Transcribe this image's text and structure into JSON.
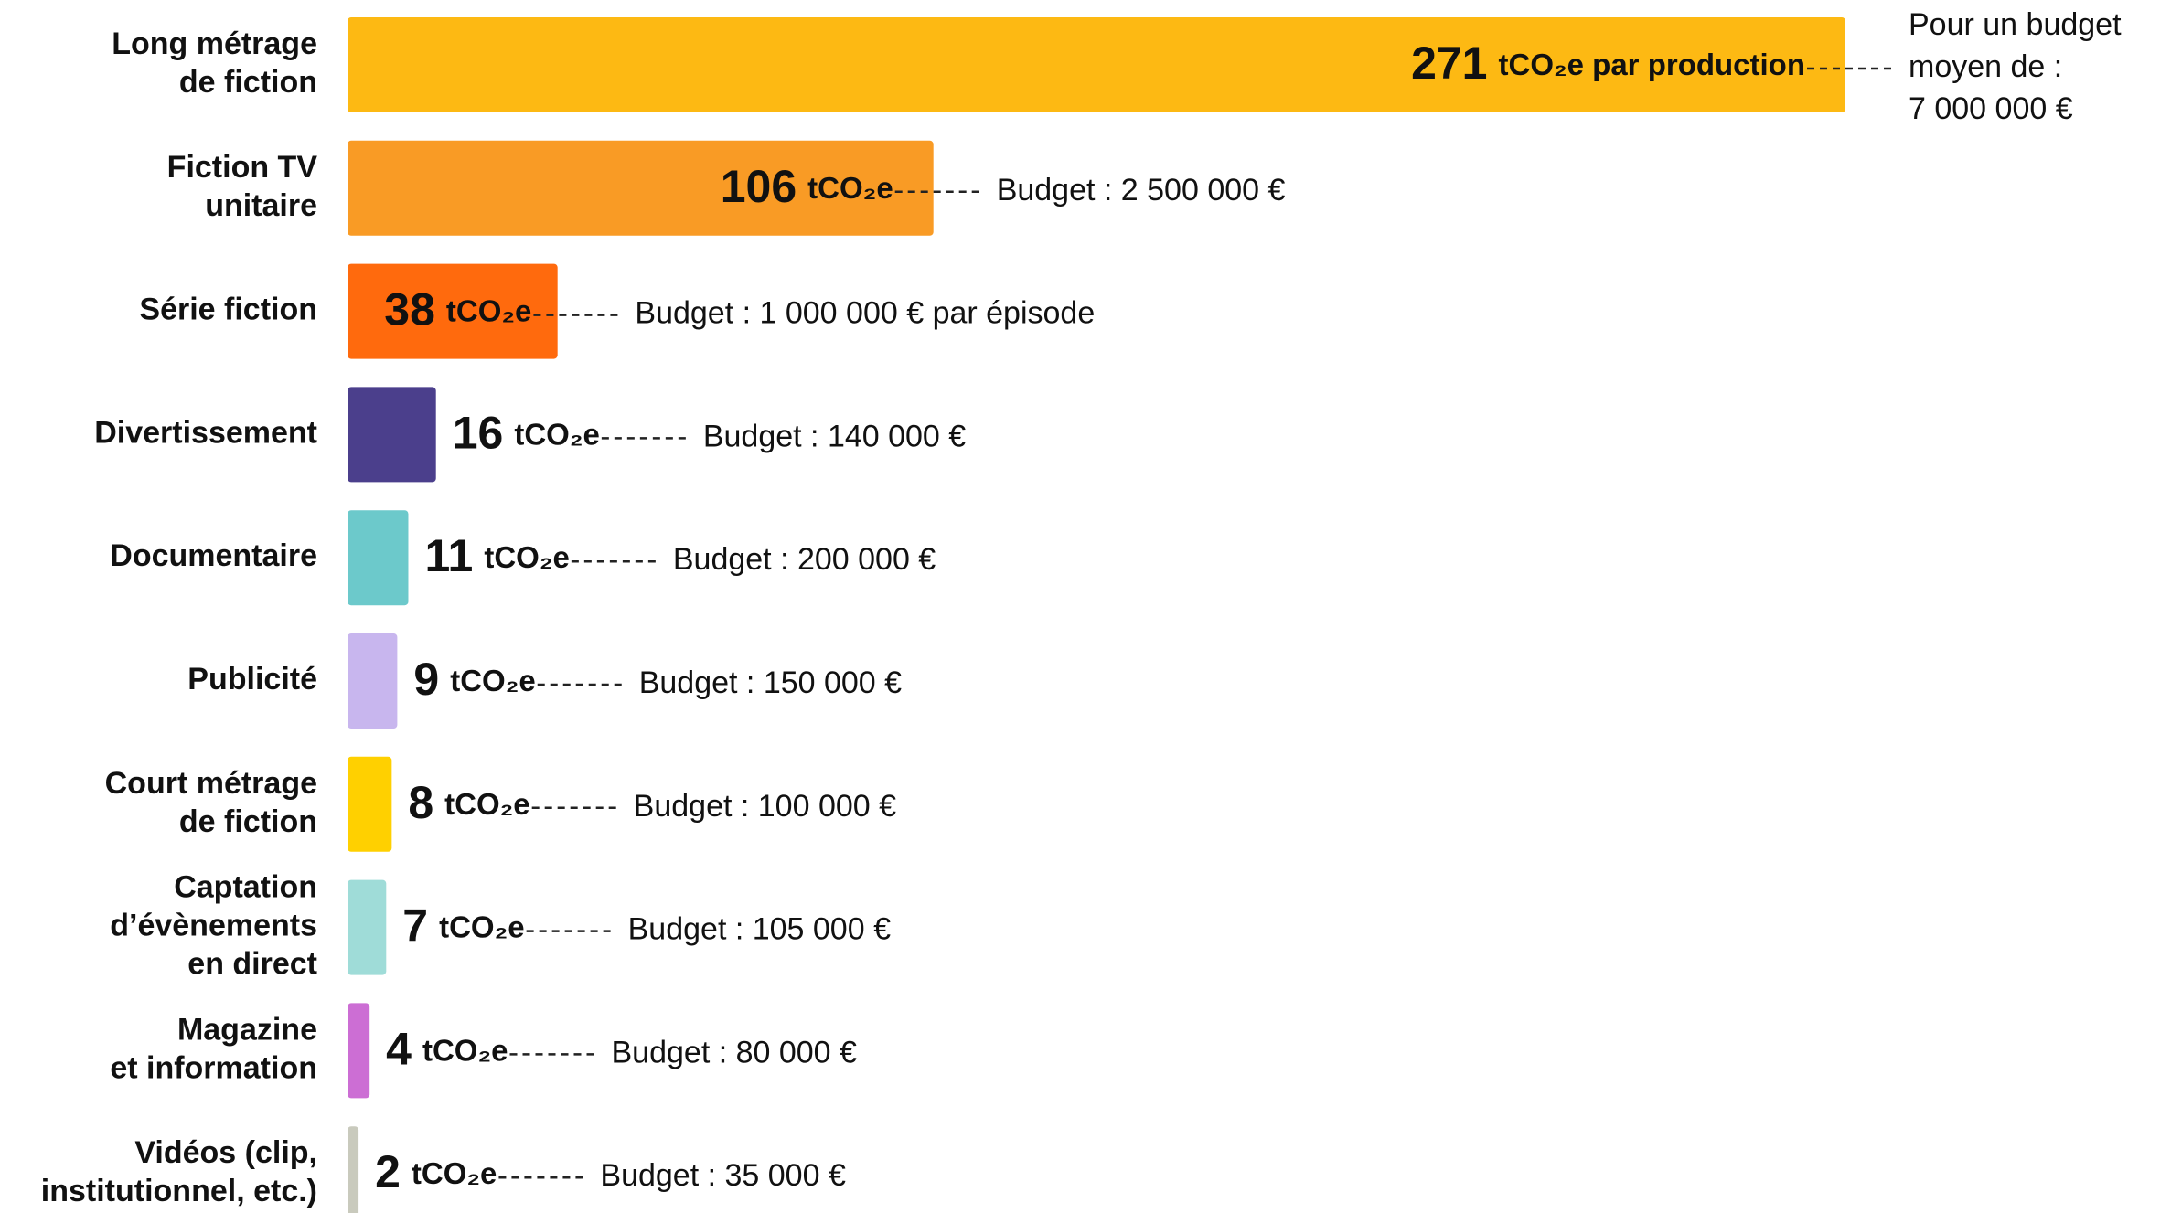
{
  "chart_data": {
    "type": "bar",
    "orientation": "horizontal",
    "categories": [
      [
        "Long métrage",
        "de fiction"
      ],
      [
        "Fiction TV",
        "unitaire"
      ],
      [
        "Série fiction"
      ],
      [
        "Divertissement"
      ],
      [
        "Documentaire"
      ],
      [
        "Publicité"
      ],
      [
        "Court métrage",
        "de fiction"
      ],
      [
        "Captation",
        "d’évènements",
        "en direct"
      ],
      [
        "Magazine",
        "et information"
      ],
      [
        "Vidéos (clip,",
        "institutionnel, etc.)"
      ]
    ],
    "values": [
      271,
      106,
      38,
      16,
      11,
      9,
      8,
      7,
      4,
      2
    ],
    "units": [
      "tCO₂e par production",
      "tCO₂e",
      "tCO₂e",
      "tCO₂e",
      "tCO₂e",
      "tCO₂e",
      "tCO₂e",
      "tCO₂e",
      "tCO₂e",
      "tCO₂e"
    ],
    "colors": [
      "#fdb913",
      "#f99b25",
      "#ff6a0d",
      "#4b3f8c",
      "#6cc9cb",
      "#c8b6ee",
      "#ffd000",
      "#9fdcd8",
      "#cc6ed4",
      "#c9cabd"
    ],
    "annotations": [
      [
        "Pour un budget",
        "moyen de :",
        "7 000 000 €"
      ],
      [
        "Budget : 2 500 000 €"
      ],
      [
        "Budget : 1 000 000 € par épisode"
      ],
      [
        "Budget : 140 000 €"
      ],
      [
        "Budget : 200 000 €"
      ],
      [
        "Budget : 150 000 €"
      ],
      [
        "Budget : 100 000 €"
      ],
      [
        "Budget : 105 000 €"
      ],
      [
        "Budget : 80 000 €"
      ],
      [
        "Budget : 35 000 €"
      ]
    ]
  }
}
